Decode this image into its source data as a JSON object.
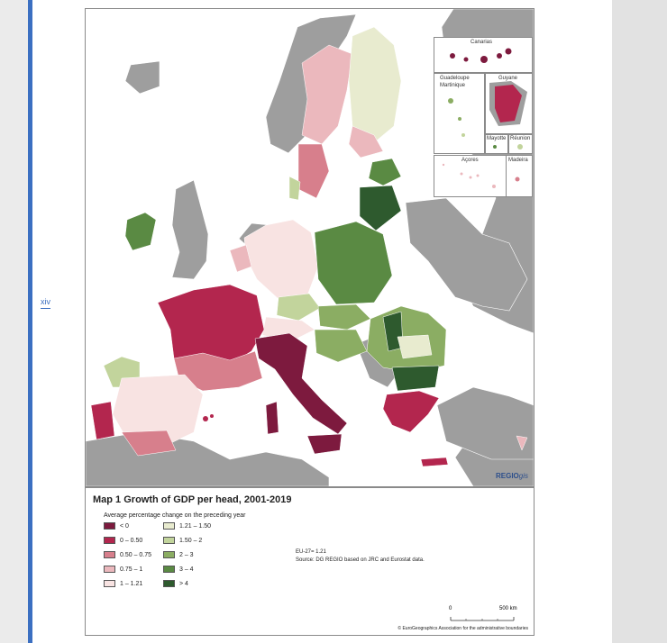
{
  "page": {
    "number": "xiv"
  },
  "map": {
    "title": "Map 1 Growth of GDP per head, 2001-2019",
    "logo_bold": "REGIO",
    "logo_italic": "gis",
    "insets": {
      "canarias": "Canarias",
      "guadeloupe": "Guadeloupe",
      "martinique": "Martinique",
      "guyane": "Guyane",
      "mayotte": "Mayotte",
      "reunion": "Réunion",
      "acores": "Açores",
      "madeira": "Madeira"
    }
  },
  "legend": {
    "subtitle": "Average percentage change on the preceding year",
    "items": [
      {
        "label": "< 0",
        "color": "#7d1a3e"
      },
      {
        "label": "0 – 0.50",
        "color": "#b3264e"
      },
      {
        "label": "0.50 – 0.75",
        "color": "#d77f8c"
      },
      {
        "label": "0.75 – 1",
        "color": "#ebb8bd"
      },
      {
        "label": "1 – 1.21",
        "color": "#f8e3e2"
      },
      {
        "label": "1.21 – 1.50",
        "color": "#e8ebcf"
      },
      {
        "label": "1.50 – 2",
        "color": "#c2d49c"
      },
      {
        "label": "2 – 3",
        "color": "#8bad63"
      },
      {
        "label": "3 – 4",
        "color": "#5a8a43"
      },
      {
        "label": "> 4",
        "color": "#2e5a2e"
      }
    ],
    "eu_average": "EU-27= 1.21",
    "source": "Source: DG REGIO based on JRC and Eurostat data.",
    "scale_start": "0",
    "scale_end": "500 km",
    "copyright": "© EuroGeographics Association for the administrative boundaries"
  },
  "colors": {
    "non_eu": "#9e9e9e",
    "sea": "#ffffff",
    "accent": "#3b6fc1"
  }
}
